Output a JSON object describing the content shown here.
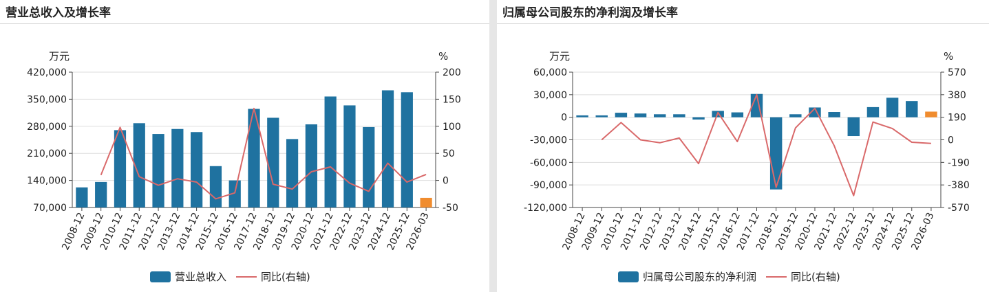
{
  "colors": {
    "bar": "#1f72a0",
    "forecast": "#f08c2e",
    "line": "#d9696a",
    "axis": "#444444",
    "grid": "#dddddd"
  },
  "charts": [
    {
      "title": "营业总收入及增长率",
      "chart_data": {
        "type": "bar",
        "title": "营业总收入及增长率",
        "categories": [
          "2008-12",
          "2009-12",
          "2010-12",
          "2011-12",
          "2012-12",
          "2013-12",
          "2014-12",
          "2015-12",
          "2016-12",
          "2017-12",
          "2018-12",
          "2019-12",
          "2020-12",
          "2021-12",
          "2022-12",
          "2023-12",
          "2024-12",
          "2025-12",
          "2026-03"
        ],
        "left_unit": "万元",
        "right_unit": "%",
        "left_ticks": [
          "420,000",
          "350,000",
          "280,000",
          "210,000",
          "140,000",
          "70,000"
        ],
        "right_ticks": [
          "200",
          "150",
          "100",
          "50",
          "0",
          "-50"
        ],
        "ylim": [
          70000,
          420000
        ],
        "y2lim": [
          -50,
          200
        ],
        "series": [
          {
            "name": "营业总收入",
            "kind": "bar",
            "values": [
              122000,
              136000,
              270000,
              288000,
              260000,
              273000,
              265000,
              177000,
              140000,
              325000,
              302000,
              247000,
              285000,
              357000,
              334000,
              278000,
              373000,
              368000,
              95000
            ],
            "highlight_last": true
          },
          {
            "name": "同比(右轴)",
            "kind": "line",
            "values": [
              null,
              10,
              98,
              7,
              -9,
              3,
              -3,
              -34,
              -23,
              133,
              -7,
              -16,
              16,
              25,
              -5,
              -20,
              32,
              -3,
              11
            ]
          }
        ],
        "legend": {
          "bar": "营业总收入",
          "line": "同比(右轴)"
        },
        "grid": true,
        "legend_position": "bottom"
      }
    },
    {
      "title": "归属母公司股东的净利润及增长率",
      "chart_data": {
        "type": "bar",
        "title": "归属母公司股东的净利润及增长率",
        "categories": [
          "2008-12",
          "2009-12",
          "2010-12",
          "2011-12",
          "2012-12",
          "2013-12",
          "2014-12",
          "2015-12",
          "2016-12",
          "2017-12",
          "2018-12",
          "2019-12",
          "2020-12",
          "2021-12",
          "2022-12",
          "2023-12",
          "2024-12",
          "2025-12",
          "2026-03"
        ],
        "left_unit": "万元",
        "right_unit": "%",
        "left_ticks": [
          "60,000",
          "30,000",
          "0",
          "-30,000",
          "-60,000",
          "-90,000",
          "-120,000"
        ],
        "right_ticks": [
          "570",
          "380",
          "190",
          "0",
          "-190",
          "-380",
          "-570"
        ],
        "ylim": [
          -120000,
          60000
        ],
        "y2lim": [
          -570,
          570
        ],
        "series": [
          {
            "name": "归属母公司股东的净利润",
            "kind": "bar",
            "values": [
              2500,
              2500,
              6000,
              5000,
              4000,
              4000,
              -3000,
              8500,
              6500,
              31000,
              -96000,
              4000,
              13000,
              7000,
              -25000,
              13500,
              26000,
              21500,
              7500
            ],
            "highlight_last": true
          },
          {
            "name": "同比(右轴)",
            "kind": "line",
            "values": [
              null,
              0,
              145,
              0,
              -25,
              15,
              -200,
              230,
              -15,
              380,
              -400,
              100,
              265,
              -50,
              -470,
              150,
              95,
              -20,
              -30
            ]
          }
        ],
        "legend": {
          "bar": "归属母公司股东的净利润",
          "line": "同比(右轴)"
        },
        "grid": true,
        "legend_position": "bottom"
      }
    }
  ]
}
